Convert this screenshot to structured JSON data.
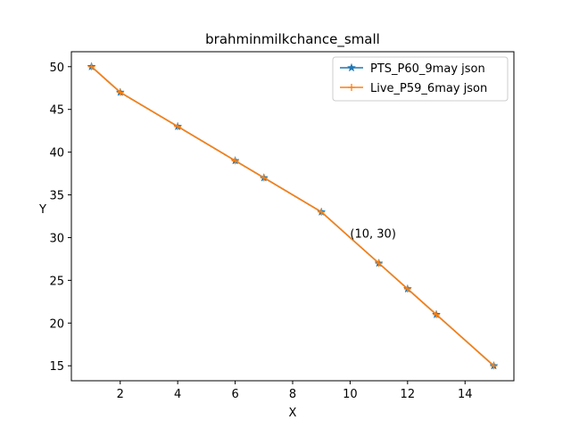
{
  "chart_data": {
    "type": "line",
    "title": "brahminmilkchance_small",
    "xlabel": "X",
    "ylabel": "Y",
    "xlim": [
      0.3,
      15.7
    ],
    "ylim": [
      13.25,
      51.75
    ],
    "xticks": [
      2,
      4,
      6,
      8,
      10,
      12,
      14
    ],
    "yticks": [
      15,
      20,
      25,
      30,
      35,
      40,
      45,
      50
    ],
    "grid": false,
    "legend_position": "upper right",
    "series": [
      {
        "name": "PTS_P60_9may json",
        "color": "#1f77b4",
        "marker": "star",
        "x": [
          1,
          2,
          4,
          6,
          7,
          9,
          11,
          12,
          13,
          15
        ],
        "y": [
          50,
          47,
          43,
          39,
          37,
          33,
          27,
          24,
          21,
          15
        ]
      },
      {
        "name": "Live_P59_6may json",
        "color": "#ff7f0e",
        "marker": "plus",
        "x": [
          1,
          2,
          4,
          6,
          7,
          9,
          11,
          12,
          13,
          15
        ],
        "y": [
          50,
          47,
          43,
          39,
          37,
          33,
          27,
          24,
          21,
          15
        ]
      }
    ],
    "annotations": [
      {
        "text": "(10, 30)",
        "x": 10,
        "y": 30
      }
    ]
  }
}
